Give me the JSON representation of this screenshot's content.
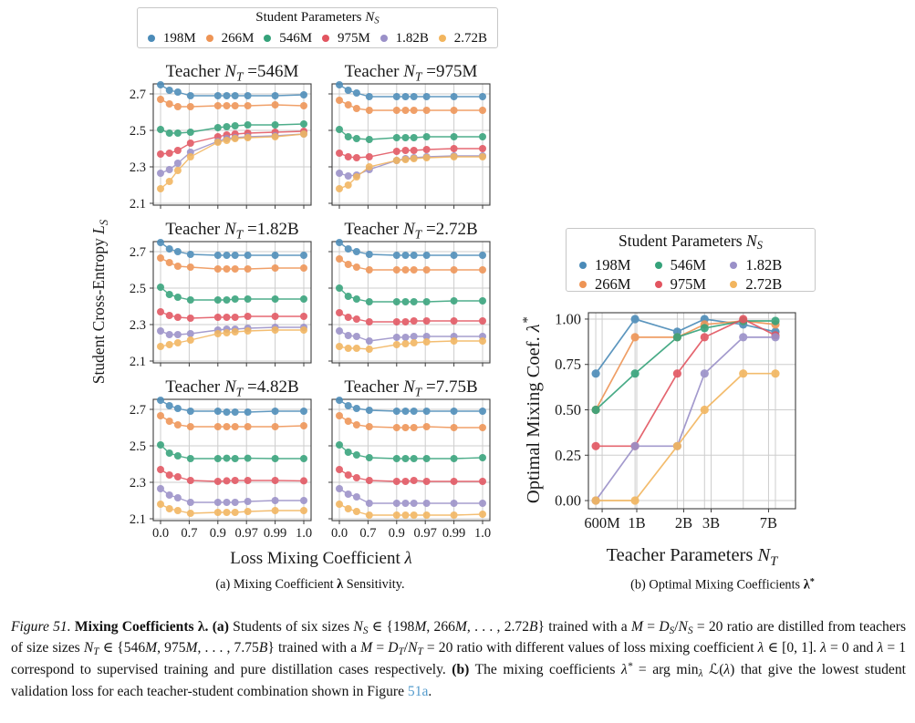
{
  "colors": {
    "grid": "#cdcdcd",
    "spine": "#3c3c3c",
    "link": "#569ccd",
    "series": [
      "#4b8bb8",
      "#ee9455",
      "#35a27a",
      "#e25560",
      "#9a90c8",
      "#f2b55e"
    ]
  },
  "legend_a": {
    "title": "Student Parameters $N_{S}$",
    "items": [
      {
        "label": "198M",
        "color": "#4b8bb8"
      },
      {
        "label": "266M",
        "color": "#ee9455"
      },
      {
        "label": "546M",
        "color": "#35a27a"
      },
      {
        "label": "975M",
        "color": "#e25560"
      },
      {
        "label": "1.82B",
        "color": "#9a90c8"
      },
      {
        "label": "2.72B",
        "color": "#f2b55e"
      }
    ]
  },
  "legend_b": {
    "title": "Student Parameters $N_{S}$",
    "items": [
      {
        "label": "198M",
        "color": "#4b8bb8"
      },
      {
        "label": "546M",
        "color": "#35a27a"
      },
      {
        "label": "1.82B",
        "color": "#9a90c8"
      },
      {
        "label": "266M",
        "color": "#ee9455"
      },
      {
        "label": "975M",
        "color": "#e25560"
      },
      {
        "label": "2.72B",
        "color": "#f2b55e"
      }
    ]
  },
  "captions": {
    "a": "(a) Mixing Coefficient **λ** Sensitivity.",
    "b": "(b) Optimal Mixing Coefficients **λ^{*}**"
  },
  "figure_caption": "$Figure 51.$ **Mixing Coefficients λ.** **(a)** Students of six sizes $N_{S}$ ∈ {198$M$, 266$M$, . . . , 2.72$B$} trained with a $M$ = $D_{S}$/$N_{S}$ = 20 ratio are distilled from teachers of size sizes $N_{T}$ ∈ {546$M$, 975$M$, . . . , 7.75$B$} trained with a $M$ = $D_{T}$/$N_{T}$ = 20 ratio with different values of loss mixing coefficient $λ$ ∈ [0, 1]. $λ$ = 0 and $λ$ = 1 correspond to supervised training and pure distillation cases respectively. **(b)** The mixing coefficients $λ^{*}$ = arg min_{$λ$} ℒ($λ$) that give the lowest student validation loss for each teacher-student combination shown in Figure [[51a]].",
  "chart_data": [
    {
      "id": "sensitivity_grid",
      "type": "line",
      "x_scale": "neglog10(1-λ), λ=1 appended",
      "x_values": [
        0.0,
        0.3,
        0.5,
        0.7,
        0.9,
        0.93,
        0.95,
        0.97,
        0.99,
        1.0
      ],
      "x_tick_labels": [
        "0.0",
        "0.7",
        "0.9",
        "0.97",
        "0.99",
        "1.0"
      ],
      "x_tick_values": [
        0.0,
        0.7,
        0.9,
        0.97,
        0.99,
        1.0
      ],
      "xlabel": "Loss Mixing Coefficient $λ$",
      "ylabel": "Student Cross-Entropy $L_{S}$",
      "y_ticks": [
        "2.1",
        "2.3",
        "2.5",
        "2.7"
      ],
      "y_tick_values": [
        2.1,
        2.3,
        2.5,
        2.7
      ],
      "ylim": [
        2.09,
        2.755
      ],
      "grid": true,
      "series_labels": [
        "198M",
        "266M",
        "546M",
        "975M",
        "1.82B",
        "2.72B"
      ],
      "subplots": [
        {
          "title": "Teacher $N_{T}$ =546M",
          "series": [
            [
              2.75,
              2.72,
              2.71,
              2.69,
              2.69,
              2.69,
              2.69,
              2.69,
              2.69,
              2.695
            ],
            [
              2.67,
              2.645,
              2.63,
              2.63,
              2.635,
              2.635,
              2.635,
              2.635,
              2.64,
              2.635
            ],
            [
              2.505,
              2.485,
              2.485,
              2.49,
              2.515,
              2.52,
              2.525,
              2.53,
              2.53,
              2.535
            ],
            [
              2.37,
              2.375,
              2.39,
              2.43,
              2.465,
              2.475,
              2.48,
              2.485,
              2.49,
              2.495
            ],
            [
              2.265,
              2.285,
              2.32,
              2.38,
              2.44,
              2.455,
              2.46,
              2.465,
              2.47,
              2.48
            ],
            [
              2.18,
              2.22,
              2.28,
              2.355,
              2.435,
              2.445,
              2.455,
              2.46,
              2.465,
              2.48
            ]
          ]
        },
        {
          "title": "Teacher $N_{T}$ =975M",
          "series": [
            [
              2.75,
              2.72,
              2.705,
              2.685,
              2.685,
              2.685,
              2.685,
              2.685,
              2.685,
              2.685
            ],
            [
              2.665,
              2.64,
              2.62,
              2.61,
              2.61,
              2.61,
              2.61,
              2.61,
              2.61,
              2.61
            ],
            [
              2.505,
              2.465,
              2.455,
              2.45,
              2.46,
              2.46,
              2.46,
              2.465,
              2.465,
              2.465
            ],
            [
              2.375,
              2.355,
              2.35,
              2.355,
              2.385,
              2.39,
              2.39,
              2.395,
              2.4,
              2.4
            ],
            [
              2.265,
              2.25,
              2.255,
              2.285,
              2.335,
              2.345,
              2.35,
              2.355,
              2.36,
              2.36
            ],
            [
              2.18,
              2.2,
              2.245,
              2.3,
              2.335,
              2.34,
              2.345,
              2.35,
              2.355,
              2.355
            ]
          ]
        },
        {
          "title": "Teacher $N_{T}$ =1.82B",
          "series": [
            [
              2.75,
              2.715,
              2.7,
              2.685,
              2.68,
              2.68,
              2.68,
              2.68,
              2.68,
              2.68
            ],
            [
              2.665,
              2.64,
              2.62,
              2.615,
              2.605,
              2.605,
              2.605,
              2.605,
              2.61,
              2.61
            ],
            [
              2.505,
              2.465,
              2.45,
              2.435,
              2.435,
              2.435,
              2.44,
              2.44,
              2.44,
              2.44
            ],
            [
              2.37,
              2.35,
              2.34,
              2.335,
              2.34,
              2.34,
              2.34,
              2.345,
              2.345,
              2.345
            ],
            [
              2.265,
              2.245,
              2.245,
              2.25,
              2.27,
              2.275,
              2.275,
              2.28,
              2.285,
              2.285
            ],
            [
              2.18,
              2.19,
              2.2,
              2.215,
              2.25,
              2.255,
              2.26,
              2.265,
              2.27,
              2.27
            ]
          ]
        },
        {
          "title": "Teacher $N_{T}$ =2.72B",
          "series": [
            [
              2.75,
              2.715,
              2.7,
              2.685,
              2.68,
              2.68,
              2.68,
              2.68,
              2.68,
              2.68
            ],
            [
              2.66,
              2.63,
              2.615,
              2.6,
              2.6,
              2.6,
              2.6,
              2.6,
              2.6,
              2.6
            ],
            [
              2.5,
              2.455,
              2.44,
              2.425,
              2.425,
              2.425,
              2.425,
              2.425,
              2.43,
              2.43
            ],
            [
              2.365,
              2.34,
              2.33,
              2.315,
              2.315,
              2.315,
              2.32,
              2.32,
              2.32,
              2.32
            ],
            [
              2.265,
              2.24,
              2.235,
              2.21,
              2.23,
              2.23,
              2.235,
              2.235,
              2.235,
              2.235
            ],
            [
              2.18,
              2.17,
              2.17,
              2.165,
              2.19,
              2.195,
              2.2,
              2.205,
              2.21,
              2.21
            ]
          ]
        },
        {
          "title": "Teacher $N_{T}$ =4.82B",
          "series": [
            [
              2.75,
              2.72,
              2.705,
              2.69,
              2.69,
              2.685,
              2.685,
              2.685,
              2.69,
              2.69
            ],
            [
              2.665,
              2.635,
              2.615,
              2.605,
              2.605,
              2.605,
              2.605,
              2.605,
              2.605,
              2.61
            ],
            [
              2.505,
              2.46,
              2.445,
              2.43,
              2.43,
              2.432,
              2.43,
              2.432,
              2.43,
              2.43
            ],
            [
              2.37,
              2.34,
              2.33,
              2.31,
              2.305,
              2.308,
              2.31,
              2.31,
              2.31,
              2.308
            ],
            [
              2.265,
              2.23,
              2.215,
              2.19,
              2.19,
              2.19,
              2.19,
              2.195,
              2.2,
              2.2
            ],
            [
              2.18,
              2.155,
              2.145,
              2.13,
              2.135,
              2.135,
              2.135,
              2.14,
              2.145,
              2.145
            ]
          ]
        },
        {
          "title": "Teacher $N_{T}$ =7.75B",
          "series": [
            [
              2.75,
              2.72,
              2.705,
              2.695,
              2.69,
              2.69,
              2.69,
              2.69,
              2.69,
              2.69
            ],
            [
              2.665,
              2.635,
              2.615,
              2.605,
              2.6,
              2.6,
              2.6,
              2.605,
              2.6,
              2.6
            ],
            [
              2.505,
              2.465,
              2.45,
              2.435,
              2.43,
              2.43,
              2.43,
              2.43,
              2.43,
              2.435
            ],
            [
              2.37,
              2.34,
              2.325,
              2.31,
              2.305,
              2.305,
              2.31,
              2.305,
              2.305,
              2.305
            ],
            [
              2.265,
              2.235,
              2.22,
              2.185,
              2.185,
              2.185,
              2.185,
              2.185,
              2.185,
              2.185
            ],
            [
              2.18,
              2.155,
              2.14,
              2.12,
              2.12,
              2.12,
              2.12,
              2.12,
              2.12,
              2.125
            ]
          ]
        }
      ]
    },
    {
      "id": "optimal_mixing",
      "type": "line",
      "x_scale": "log",
      "x_categories": [
        "546M",
        "975M",
        "1.82B",
        "2.72B",
        "4.82B",
        "7.75B"
      ],
      "x_values_billions": [
        0.546,
        0.975,
        1.82,
        2.72,
        4.82,
        7.75
      ],
      "x_ticks": [
        {
          "label": "600M",
          "value": 0.6
        },
        {
          "label": "1B",
          "value": 1.0
        },
        {
          "label": "2B",
          "value": 2.0
        },
        {
          "label": "3B",
          "value": 3.0
        },
        {
          "label": "7B",
          "value": 7.0
        }
      ],
      "xlabel": "Teacher Parameters $N_{T}$",
      "ylabel": "Optimal Mixing Coef. $λ^{*}$",
      "y_ticks": [
        "0.00",
        "0.25",
        "0.50",
        "0.75",
        "1.00"
      ],
      "y_tick_values": [
        0.0,
        0.25,
        0.5,
        0.75,
        1.0
      ],
      "ylim": [
        -0.045,
        1.035
      ],
      "grid": true,
      "series": [
        {
          "name": "198M",
          "values": [
            0.7,
            1.0,
            0.93,
            1.0,
            0.97,
            0.93
          ]
        },
        {
          "name": "266M",
          "values": [
            0.5,
            0.9,
            0.9,
            0.97,
            0.99,
            0.97
          ]
        },
        {
          "name": "546M",
          "values": [
            0.5,
            0.7,
            0.9,
            0.95,
            0.99,
            0.99
          ]
        },
        {
          "name": "975M",
          "values": [
            0.3,
            0.3,
            0.7,
            0.9,
            1.0,
            0.91
          ]
        },
        {
          "name": "1.82B",
          "values": [
            0.0,
            0.3,
            0.3,
            0.7,
            0.9,
            0.9
          ]
        },
        {
          "name": "2.72B",
          "values": [
            0.0,
            0.0,
            0.3,
            0.5,
            0.7,
            0.7
          ]
        }
      ]
    }
  ]
}
